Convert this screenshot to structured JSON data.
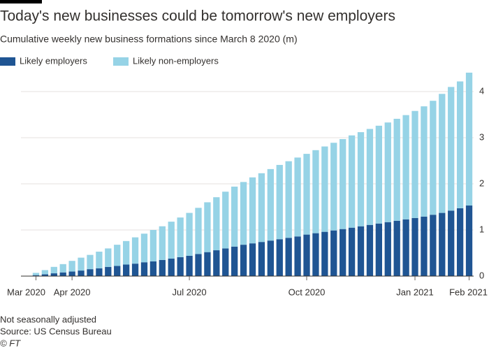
{
  "chart_data": {
    "type": "stacked_bar",
    "title": "Today's new businesses could be tomorrow's new employers",
    "subtitle": "Cumulative weekly new business formations since March 8 2020 (m)",
    "categories": [
      "Mar 2020",
      null,
      null,
      null,
      "Apr 2020",
      null,
      null,
      null,
      null,
      null,
      null,
      null,
      null,
      null,
      null,
      null,
      null,
      "Jul 2020",
      null,
      null,
      null,
      null,
      null,
      null,
      null,
      null,
      null,
      null,
      null,
      null,
      "Oct 2020",
      null,
      null,
      null,
      null,
      null,
      null,
      null,
      null,
      null,
      null,
      null,
      "Jan 2021",
      null,
      null,
      null,
      null,
      null,
      "Feb 2021"
    ],
    "series": [
      {
        "name": "Likely employers",
        "color": "#1f5593",
        "values": [
          0.02,
          0.04,
          0.06,
          0.08,
          0.1,
          0.12,
          0.15,
          0.17,
          0.2,
          0.22,
          0.25,
          0.27,
          0.3,
          0.32,
          0.35,
          0.38,
          0.41,
          0.44,
          0.48,
          0.52,
          0.56,
          0.6,
          0.64,
          0.68,
          0.71,
          0.74,
          0.77,
          0.8,
          0.83,
          0.86,
          0.9,
          0.93,
          0.96,
          0.99,
          1.02,
          1.05,
          1.08,
          1.11,
          1.14,
          1.17,
          1.2,
          1.23,
          1.26,
          1.29,
          1.33,
          1.37,
          1.42,
          1.47,
          1.53
        ]
      },
      {
        "name": "Likely non-employers",
        "color": "#96d3e6",
        "values": [
          0.05,
          0.09,
          0.14,
          0.18,
          0.23,
          0.28,
          0.31,
          0.36,
          0.4,
          0.46,
          0.51,
          0.57,
          0.62,
          0.68,
          0.73,
          0.8,
          0.86,
          0.93,
          1.0,
          1.08,
          1.15,
          1.23,
          1.3,
          1.36,
          1.43,
          1.49,
          1.55,
          1.61,
          1.66,
          1.71,
          1.75,
          1.8,
          1.85,
          1.9,
          1.95,
          2.0,
          2.04,
          2.08,
          2.12,
          2.16,
          2.21,
          2.26,
          2.32,
          2.39,
          2.47,
          2.58,
          2.68,
          2.75,
          2.88
        ]
      }
    ],
    "ylim": [
      0,
      4.5
    ],
    "yticks": [
      0,
      1,
      2,
      3,
      4
    ],
    "grid": true,
    "y_axis_side": "right",
    "notes": [
      "Not seasonally adjusted",
      "Source: US Census Bureau",
      "© FT"
    ]
  }
}
